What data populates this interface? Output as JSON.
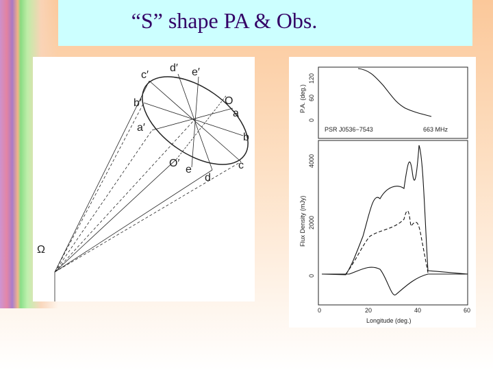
{
  "title": "“S” shape PA & Obs.",
  "diagram": {
    "labels": [
      "c′",
      "d′",
      "e′",
      "O",
      "a",
      "b",
      "c",
      "d",
      "e",
      "O′",
      "a′",
      "b′"
    ],
    "omega": "Ω"
  },
  "plot": {
    "pa_axis_label": "P.A. (deg.)",
    "pa_ticks": [
      0,
      60,
      120
    ],
    "pulsar": "PSR J0536−7543",
    "frequency": "663 MHz",
    "flux_axis_label": "Flux Density (mJy)",
    "flux_ticks": [
      0,
      2000,
      4000
    ],
    "x_ticks": [
      0,
      20,
      40,
      60
    ],
    "x_axis_label": "Longitude (deg.)"
  }
}
